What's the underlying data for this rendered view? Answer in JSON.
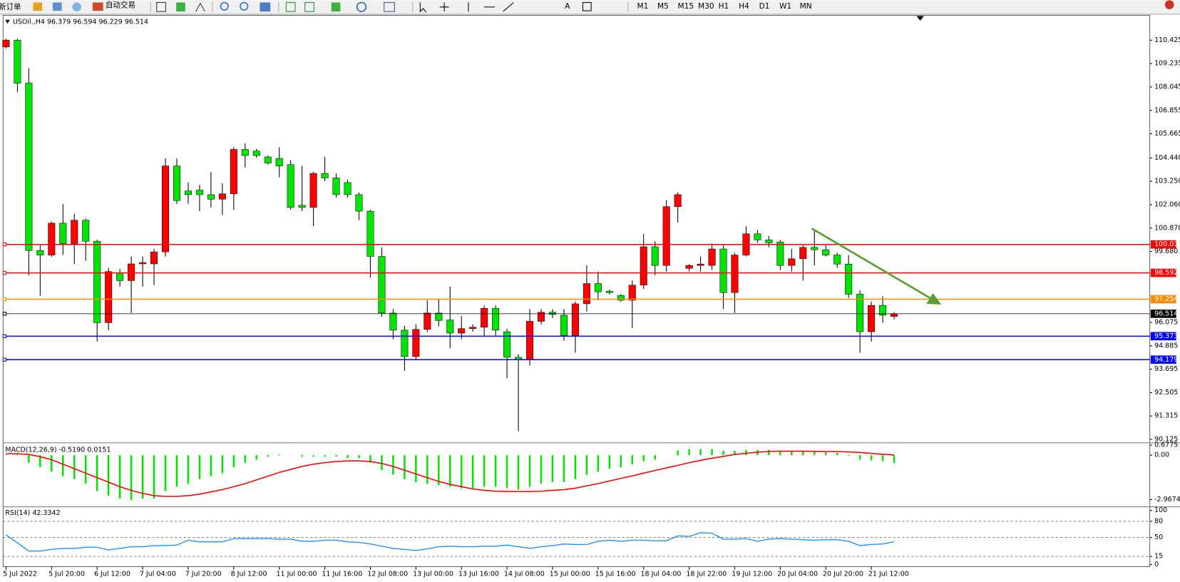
{
  "toolbar": {
    "new_order": "新订单",
    "auto_trading": "自动交易",
    "text_tool": "A",
    "timeframes": [
      "M1",
      "M5",
      "M15",
      "M30",
      "H1",
      "H4",
      "D1",
      "W1",
      "MN"
    ]
  },
  "chart_data": [
    {
      "type": "candlestick",
      "title": "USOil.,H4 96.379 96.594 96.229 96.514",
      "up_color": "#ff0000",
      "down_color": "#00e400",
      "categories": [
        "5 Jul 2022",
        null,
        null,
        null,
        "5 Jul 20:00",
        null,
        null,
        null,
        "6 Jul 12:00",
        null,
        null,
        null,
        "7 Jul 04:00",
        null,
        null,
        null,
        "7 Jul 20:00",
        null,
        null,
        null,
        "8 Jul 12:00",
        null,
        null,
        null,
        "11 Jul 00:00",
        null,
        null,
        null,
        "11 Jul 16:00",
        null,
        null,
        null,
        "12 Jul 08:00",
        null,
        null,
        null,
        "13 Jul 00:00",
        null,
        null,
        null,
        "13 Jul 16:00",
        null,
        null,
        null,
        "14 Jul 08:00",
        null,
        null,
        null,
        "15 Jul 00:00",
        null,
        null,
        null,
        "15 Jul 16:00",
        null,
        null,
        null,
        "18 Jul 04:00",
        null,
        null,
        null,
        "18 Jul 22:00",
        null,
        null,
        null,
        "19 Jul 12:00",
        null,
        null,
        null,
        "20 Jul 04:00",
        null,
        null,
        null,
        "20 Jul 20:00",
        null,
        null,
        null,
        "21 Jul 12:00",
        null,
        null
      ],
      "open": [
        110.08,
        110.43,
        108.24,
        99.73,
        99.5,
        101.12,
        100.08,
        101.27,
        100.2,
        96.06,
        98.6,
        98.2,
        99.05,
        99.05,
        99.66,
        104.03,
        102.76,
        102.8,
        102.57,
        102.34,
        102.61,
        104.87,
        104.79,
        104.49,
        104.41,
        104.1,
        102.03,
        101.92,
        103.65,
        103.42,
        103.19,
        102.57,
        101.73,
        99.43,
        96.55,
        95.68,
        94.34,
        95.72,
        96.55,
        96.2,
        95.53,
        95.76,
        95.83,
        96.79,
        95.6,
        94.3,
        94.18,
        96.13,
        96.59,
        96.44,
        95.41,
        97.02,
        98.05,
        97.66,
        97.44,
        97.2,
        97.97,
        99.92,
        98.97,
        101.96,
        98.82,
        98.97,
        98.97,
        99.81,
        97.59,
        99.5,
        100.58,
        100.27,
        100.16,
        98.97,
        99.31,
        99.89,
        99.77,
        99.5,
        99.04,
        97.51,
        95.6,
        96.94,
        96.379
      ],
      "high": [
        110.5,
        110.5,
        109.0,
        100.0,
        101.2,
        102.1,
        101.6,
        101.35,
        100.28,
        98.85,
        98.8,
        99.43,
        99.43,
        99.81,
        104.41,
        104.41,
        103.2,
        103.07,
        103.72,
        103.15,
        104.98,
        105.18,
        104.9,
        104.56,
        104.98,
        104.33,
        104.03,
        103.72,
        104.49,
        103.65,
        103.34,
        102.69,
        101.8,
        99.89,
        96.75,
        95.91,
        95.98,
        97.2,
        97.28,
        97.89,
        96.4,
        95.98,
        96.94,
        96.94,
        95.76,
        94.45,
        96.75,
        96.75,
        96.75,
        96.75,
        97.13,
        98.97,
        98.66,
        97.74,
        97.51,
        98.2,
        100.58,
        100.2,
        102.3,
        102.69,
        99.04,
        99.43,
        100.08,
        100.0,
        99.62,
        100.96,
        100.77,
        100.46,
        100.27,
        99.81,
        100.0,
        100.77,
        100.0,
        99.62,
        99.5,
        97.7,
        97.13,
        97.4,
        96.594
      ],
      "low": [
        110.0,
        107.78,
        98.47,
        97.43,
        99.4,
        99.5,
        99.04,
        99.2,
        95.1,
        95.68,
        97.9,
        96.55,
        97.9,
        97.97,
        99.43,
        102.1,
        102.1,
        101.73,
        101.92,
        101.54,
        101.8,
        103.95,
        104.45,
        104.1,
        103.45,
        101.8,
        101.73,
        100.96,
        103.26,
        102.42,
        102.42,
        101.27,
        98.36,
        96.36,
        95.22,
        93.61,
        94.14,
        95.6,
        95.87,
        94.76,
        95.22,
        95.6,
        95.41,
        95.41,
        93.23,
        90.54,
        93.88,
        95.98,
        96.29,
        95.14,
        94.53,
        96.63,
        97.2,
        97.5,
        97.13,
        95.79,
        97.78,
        98.47,
        98.66,
        101.15,
        98.66,
        98.66,
        98.74,
        96.75,
        96.55,
        99.43,
        100.12,
        99.89,
        98.74,
        98.66,
        98.2,
        98.97,
        99.43,
        98.85,
        97.32,
        94.53,
        95.1,
        96.06,
        96.229
      ],
      "close": [
        110.43,
        108.24,
        99.73,
        99.5,
        101.12,
        100.08,
        101.27,
        100.2,
        96.06,
        98.66,
        98.2,
        99.05,
        99.12,
        99.66,
        104.03,
        102.27,
        102.57,
        102.57,
        102.34,
        102.61,
        104.87,
        104.56,
        104.56,
        104.18,
        104.03,
        101.92,
        101.92,
        103.65,
        103.42,
        102.57,
        102.57,
        101.73,
        99.43,
        96.55,
        95.68,
        94.34,
        95.72,
        96.55,
        96.17,
        95.53,
        95.76,
        95.83,
        96.79,
        95.68,
        94.3,
        94.18,
        96.13,
        96.59,
        96.48,
        95.41,
        97.02,
        98.05,
        97.63,
        97.59,
        97.2,
        97.97,
        99.92,
        98.97,
        101.96,
        102.57,
        98.97,
        99.04,
        99.81,
        97.59,
        99.5,
        100.58,
        100.27,
        100.12,
        98.97,
        99.31,
        99.89,
        99.77,
        99.5,
        99.04,
        97.51,
        95.6,
        96.94,
        96.44,
        96.514
      ],
      "ylim": [
        90.01,
        111.69
      ],
      "yticks": [
        110.425,
        109.235,
        108.045,
        106.855,
        105.665,
        {
          "value": 104.44,
          "label": "104.440"
        },
        {
          "value": 103.25,
          "label": "103.250"
        },
        {
          "value": 102.06,
          "label": "102.060"
        },
        {
          "value": 100.87,
          "label": "100.870"
        },
        {
          "value": 99.68,
          "label": "99.680"
        },
        96.075,
        94.885,
        93.695,
        92.505,
        91.315,
        90.125
      ],
      "levels": [
        {
          "value": 100.039,
          "color": "#ff0000"
        },
        {
          "value": 98.592,
          "color": "#ff0000"
        },
        {
          "value": 97.254,
          "color": "#ff8c00"
        },
        {
          "value": 96.514,
          "color": "#000000"
        },
        {
          "value": 95.373,
          "color": "#0000ff"
        },
        {
          "value": 94.179,
          "color": "#0000ff"
        }
      ]
    },
    {
      "type": "macd",
      "title": "MACD(12,26,9) -0.5190 0.0151",
      "color": "#00e400",
      "signal_color": "#ff0000",
      "values": [
        0.05,
        0.1,
        -0.5,
        -0.8,
        -1.1,
        -1.4,
        -1.6,
        -1.9,
        -2.4,
        -2.7,
        -2.9,
        -3.0,
        -2.9,
        -2.9,
        -2.4,
        -2.1,
        -1.9,
        -1.6,
        -1.4,
        -1.2,
        -0.8,
        -0.5,
        -0.3,
        -0.1,
        0.05,
        0.0,
        -0.1,
        -0.1,
        -0.1,
        -0.1,
        -0.2,
        -0.2,
        -0.5,
        -1.0,
        -1.3,
        -1.6,
        -1.8,
        -1.9,
        -2.0,
        -2.1,
        -2.2,
        -2.2,
        -2.1,
        -2.1,
        -2.2,
        -2.3,
        -2.1,
        -1.9,
        -1.8,
        -1.8,
        -1.6,
        -1.3,
        -1.1,
        -0.9,
        -0.8,
        -0.6,
        -0.4,
        -0.3,
        0.0,
        0.3,
        0.4,
        0.4,
        0.4,
        0.3,
        0.3,
        0.35,
        0.35,
        0.35,
        0.3,
        0.25,
        0.25,
        0.25,
        0.2,
        0.15,
        -0.05,
        -0.3,
        -0.35,
        -0.4,
        -0.519
      ],
      "signal": [
        0.1,
        0.1,
        0.05,
        -0.1,
        -0.3,
        -0.6,
        -0.9,
        -1.2,
        -1.5,
        -1.8,
        -2.1,
        -2.35,
        -2.55,
        -2.7,
        -2.75,
        -2.75,
        -2.7,
        -2.6,
        -2.45,
        -2.3,
        -2.1,
        -1.9,
        -1.65,
        -1.4,
        -1.15,
        -0.95,
        -0.75,
        -0.6,
        -0.5,
        -0.42,
        -0.38,
        -0.38,
        -0.42,
        -0.55,
        -0.75,
        -1.0,
        -1.25,
        -1.5,
        -1.75,
        -1.95,
        -2.1,
        -2.25,
        -2.35,
        -2.4,
        -2.42,
        -2.43,
        -2.43,
        -2.4,
        -2.35,
        -2.3,
        -2.2,
        -2.05,
        -1.9,
        -1.72,
        -1.55,
        -1.38,
        -1.2,
        -1.02,
        -0.85,
        -0.68,
        -0.5,
        -0.35,
        -0.2,
        -0.08,
        0.05,
        0.13,
        0.2,
        0.25,
        0.27,
        0.27,
        0.27,
        0.26,
        0.25,
        0.24,
        0.22,
        0.18,
        0.12,
        0.06,
        0.0151
      ],
      "ylim": [
        -3.32,
        0.754
      ],
      "yticks": [
        0.6775,
        {
          "value": 0,
          "label": "0.00"
        },
        -2.9674
      ]
    },
    {
      "type": "rsi",
      "title": "RSI(14) 42.3342",
      "color": "#1e90ff",
      "values": [
        55,
        40,
        25,
        25,
        28,
        30,
        30,
        32,
        32,
        27,
        30,
        33,
        33,
        35,
        35,
        36,
        45,
        42,
        42,
        42,
        48,
        48,
        48,
        48,
        47,
        47,
        43,
        43,
        45,
        45,
        42,
        41,
        38,
        34,
        30,
        28,
        26,
        29,
        33,
        34,
        33,
        33,
        34,
        34,
        36,
        33,
        30,
        33,
        35,
        38,
        37,
        37,
        43,
        45,
        43,
        45,
        45,
        44,
        44,
        53,
        52,
        59,
        58,
        47,
        47,
        48,
        43,
        47,
        48,
        47,
        46,
        45,
        46,
        46,
        43,
        35,
        37,
        38,
        42.3342
      ],
      "ylim": [
        -4,
        103.3
      ],
      "yticks": [
        100,
        80,
        50,
        15,
        0
      ],
      "levels": [
        80,
        50,
        15
      ]
    }
  ]
}
